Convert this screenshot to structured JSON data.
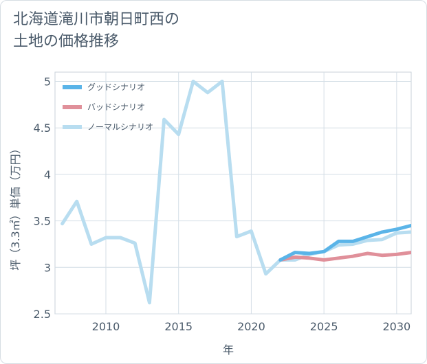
{
  "title_line1": "北海道滝川市朝日町西の",
  "title_line2": "土地の価格推移",
  "chart_data": {
    "type": "line",
    "xlabel": "年",
    "ylabel": "坪（3.3㎡）単価（万円）",
    "xlim": [
      2006.5,
      2031
    ],
    "ylim": [
      2.5,
      5.1
    ],
    "xticks": [
      2010,
      2015,
      2020,
      2025,
      2030
    ],
    "yticks": [
      2.5,
      3,
      3.5,
      4,
      4.5,
      5
    ],
    "ytick_labels": [
      "2.5",
      "3",
      "3.5",
      "4",
      "4.5",
      "5"
    ],
    "xtick_labels": [
      "2010",
      "2015",
      "2020",
      "2025",
      "2030"
    ],
    "grid": true,
    "legend_position": "top-left",
    "series": [
      {
        "name": "グッドシナリオ",
        "color": "#5ab4e8",
        "x": [
          2022,
          2023,
          2024,
          2025,
          2026,
          2027,
          2028,
          2029,
          2030,
          2031
        ],
        "y": [
          3.08,
          3.16,
          3.15,
          3.17,
          3.28,
          3.28,
          3.33,
          3.38,
          3.41,
          3.45
        ]
      },
      {
        "name": "バッドシナリオ",
        "color": "#e0909a",
        "x": [
          2022,
          2023,
          2024,
          2025,
          2026,
          2027,
          2028,
          2029,
          2030,
          2031
        ],
        "y": [
          3.08,
          3.11,
          3.1,
          3.08,
          3.1,
          3.12,
          3.15,
          3.13,
          3.14,
          3.16
        ]
      },
      {
        "name": "ノーマルシナリオ",
        "color": "#b8ddf0",
        "x": [
          2007,
          2008,
          2009,
          2010,
          2011,
          2012,
          2013,
          2014,
          2015,
          2016,
          2017,
          2018,
          2019,
          2020,
          2021,
          2022,
          2023,
          2024,
          2025,
          2026,
          2027,
          2028,
          2029,
          2030,
          2031
        ],
        "y": [
          3.47,
          3.71,
          3.25,
          3.32,
          3.32,
          3.26,
          2.62,
          4.59,
          4.43,
          5.0,
          4.88,
          5.0,
          3.33,
          3.39,
          2.93,
          3.08,
          3.08,
          3.14,
          3.17,
          3.24,
          3.25,
          3.29,
          3.3,
          3.37,
          3.38
        ]
      }
    ]
  }
}
